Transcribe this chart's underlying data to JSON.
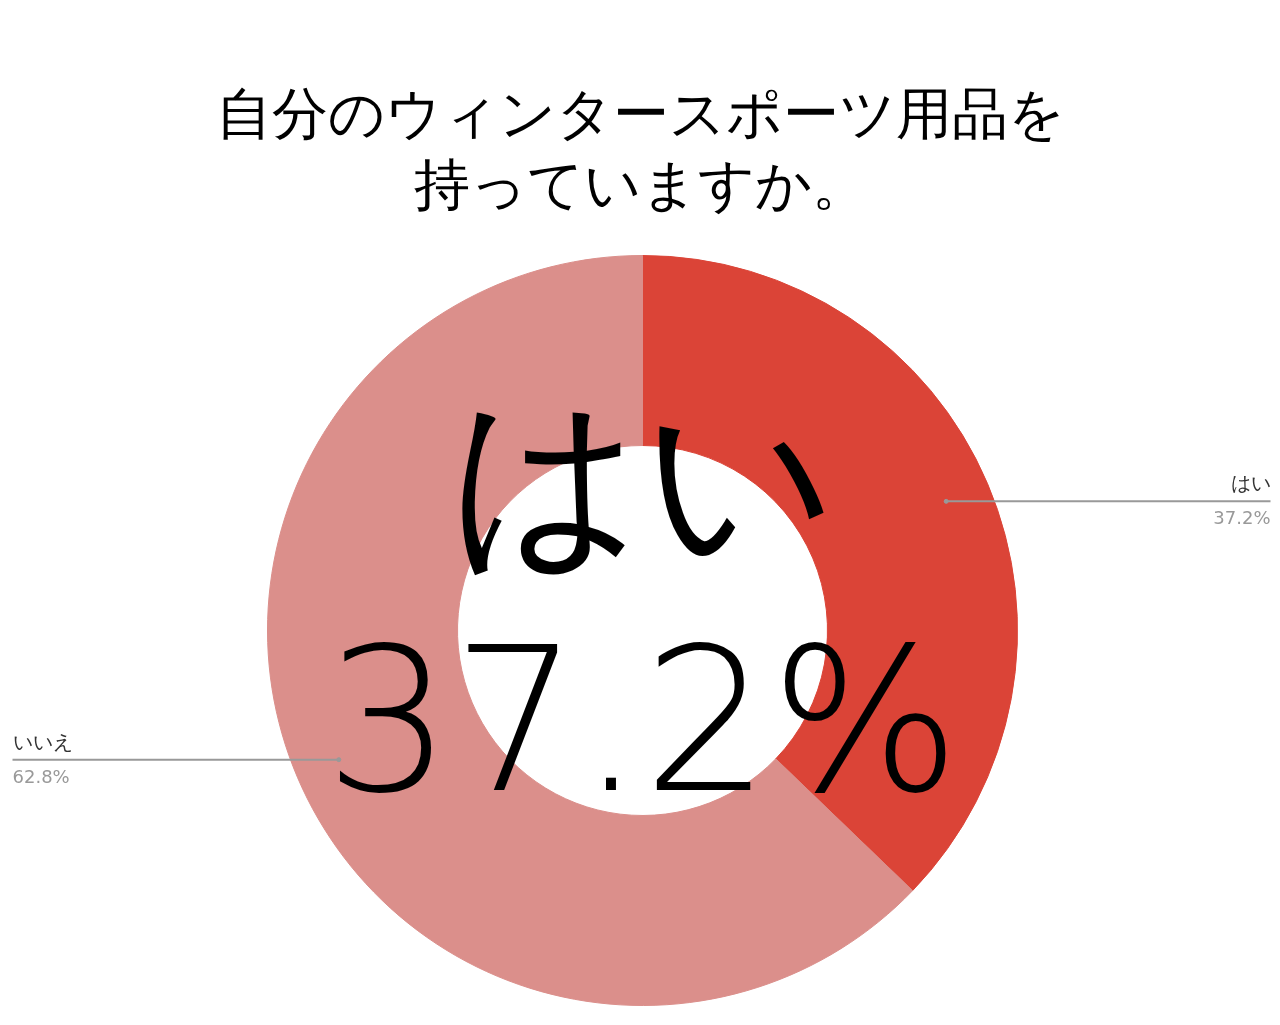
{
  "chart_data": {
    "type": "donut",
    "title": "自分のウィンタースポーツ用品を持っていますか。",
    "categories": [
      "はい",
      "いいえ"
    ],
    "values": [
      37.2,
      62.8
    ],
    "value_labels": [
      "37.2%",
      "62.8%"
    ],
    "colors": [
      "#db4437",
      "#db8f8b"
    ],
    "annotations": [
      "はい",
      "37.2%"
    ]
  }
}
